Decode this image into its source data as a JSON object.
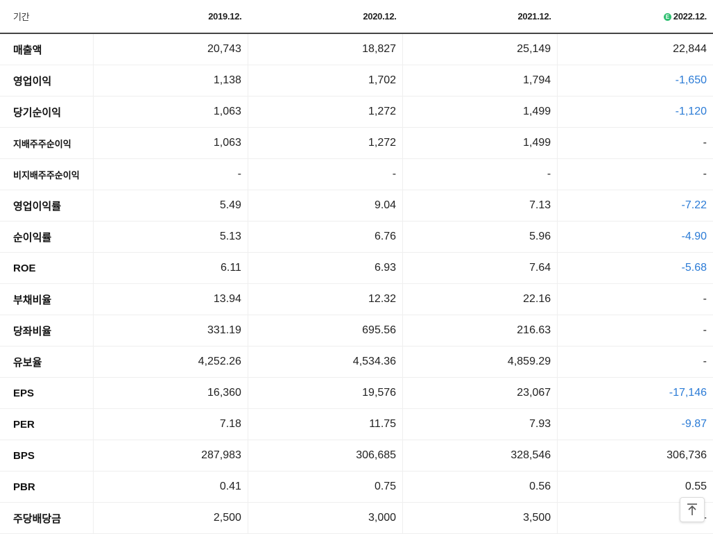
{
  "header": {
    "period_label": "기간",
    "years": [
      "2019.12.",
      "2020.12.",
      "2021.12.",
      "2022.12."
    ],
    "estimate_mark": "E"
  },
  "colors": {
    "negative": "#2b7bd6",
    "estimate_badge": "#2fbf71"
  },
  "rows": [
    {
      "label": "매출액",
      "values": [
        "20,743",
        "18,827",
        "25,149",
        "22,844"
      ]
    },
    {
      "label": "영업이익",
      "values": [
        "1,138",
        "1,702",
        "1,794",
        "-1,650"
      ]
    },
    {
      "label": "당기순이익",
      "values": [
        "1,063",
        "1,272",
        "1,499",
        "-1,120"
      ]
    },
    {
      "label": "지배주주순이익",
      "values": [
        "1,063",
        "1,272",
        "1,499",
        "-"
      ]
    },
    {
      "label": "비지배주주순이익",
      "values": [
        "-",
        "-",
        "-",
        "-"
      ]
    },
    {
      "label": "영업이익률",
      "values": [
        "5.49",
        "9.04",
        "7.13",
        "-7.22"
      ]
    },
    {
      "label": "순이익률",
      "values": [
        "5.13",
        "6.76",
        "5.96",
        "-4.90"
      ]
    },
    {
      "label": "ROE",
      "values": [
        "6.11",
        "6.93",
        "7.64",
        "-5.68"
      ]
    },
    {
      "label": "부채비율",
      "values": [
        "13.94",
        "12.32",
        "22.16",
        "-"
      ]
    },
    {
      "label": "당좌비율",
      "values": [
        "331.19",
        "695.56",
        "216.63",
        "-"
      ]
    },
    {
      "label": "유보율",
      "values": [
        "4,252.26",
        "4,534.36",
        "4,859.29",
        "-"
      ]
    },
    {
      "label": "EPS",
      "values": [
        "16,360",
        "19,576",
        "23,067",
        "-17,146"
      ]
    },
    {
      "label": "PER",
      "values": [
        "7.18",
        "11.75",
        "7.93",
        "-9.87"
      ]
    },
    {
      "label": "BPS",
      "values": [
        "287,983",
        "306,685",
        "328,546",
        "306,736"
      ]
    },
    {
      "label": "PBR",
      "values": [
        "0.41",
        "0.75",
        "0.56",
        "0.55"
      ]
    },
    {
      "label": "주당배당금",
      "values": [
        "2,500",
        "3,000",
        "3,500",
        "-"
      ]
    }
  ],
  "scroll_top_button": {
    "icon": "arrow-up-to-top-icon"
  }
}
